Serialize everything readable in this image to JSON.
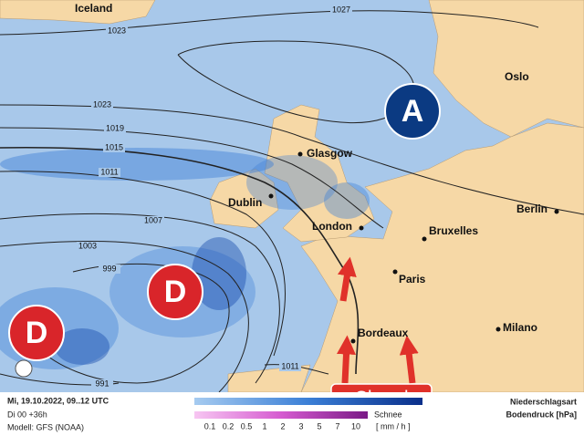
{
  "map": {
    "places": [
      "Iceland",
      "Oslo",
      "Glasgow",
      "Dublin",
      "London",
      "Bruxelles",
      "Berlin",
      "Paris",
      "Bordeaux",
      "Milano"
    ],
    "isobars": [
      1027,
      1023,
      1023,
      1019,
      1015,
      1011,
      1007,
      1003,
      999,
      991,
      1011
    ],
    "pressure_centers": [
      "A",
      "D",
      "D"
    ],
    "annotation": "Chaud"
  },
  "footer": {
    "date": "Mi, 19.10.2022, 09..12 UTC",
    "run": "Di 00 +36h",
    "model": "Modell: GFS (NOAA)",
    "legend_title": "Niederschlagsart",
    "legend_subtitle": "Bodendruck [hPa]",
    "snow_label": "Schnee",
    "unit": "[ mm / h ]",
    "scale": [
      0.1,
      0.2,
      0.5,
      1,
      2,
      3,
      5,
      7,
      10
    ]
  }
}
